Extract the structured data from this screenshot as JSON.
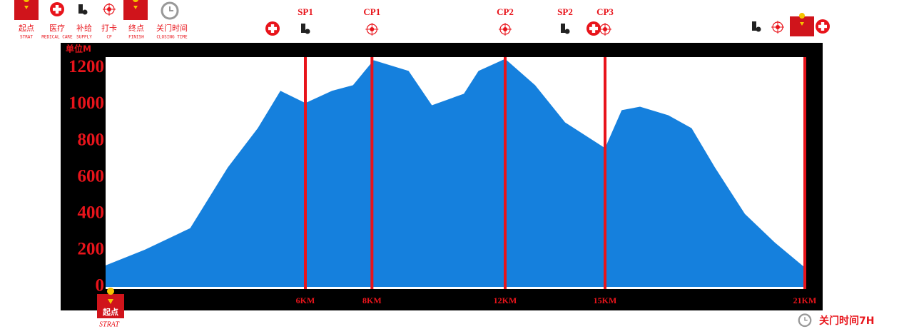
{
  "chart_data": {
    "type": "area",
    "legend": [
      {
        "name": "起点",
        "sub": "STRAT"
      },
      {
        "name": "医疗",
        "sub": "MEDICAL CARE"
      },
      {
        "name": "补给",
        "sub": "SUPPLY"
      },
      {
        "name": "打卡",
        "sub": "CP"
      },
      {
        "name": "终点",
        "sub": "FINISH"
      },
      {
        "name": "关门时间",
        "sub": "CLOSING TIME"
      }
    ],
    "y_label": "单位M",
    "x": [
      0,
      1.18,
      2.54,
      3.67,
      4.57,
      5.25,
      6,
      6.8,
      7.43,
      8.05,
      9.1,
      9.8,
      10.76,
      11.2,
      12,
      12.9,
      13.8,
      15,
      15.5,
      16.05,
      16.9,
      17.6,
      18.3,
      19.2,
      20.1,
      21
    ],
    "series": [
      {
        "color": "#1580dd",
        "values": [
          118,
          204,
          322,
          655,
          870,
          1075,
          1008,
          1075,
          1106,
          1243,
          1184,
          996,
          1059,
          1184,
          1250,
          1106,
          902,
          761,
          969,
          988,
          941,
          870,
          655,
          400,
          243,
          106
        ]
      }
    ],
    "checkpoints": [
      {
        "name": "SP1",
        "x": 6
      },
      {
        "name": "CP1",
        "x": 8
      },
      {
        "name": "CP2",
        "x": 12
      },
      {
        "name": "SP2",
        "x": 13.8
      },
      {
        "name": "CP3",
        "x": 15
      }
    ],
    "xlim": [
      0,
      21
    ],
    "xticks": [
      {
        "value": 6,
        "label": "6KM"
      },
      {
        "value": 8,
        "label": "8KM"
      },
      {
        "value": 12,
        "label": "12KM"
      },
      {
        "value": 15,
        "label": "15KM"
      },
      {
        "value": 21,
        "label": "21KM"
      }
    ],
    "ylim": [
      0,
      1260
    ],
    "yticks": [
      0,
      200,
      400,
      600,
      800,
      1000,
      1200
    ],
    "grid_color": "#e8141b",
    "start_badge": {
      "name": "起点",
      "sub": "STRAT"
    },
    "closing_time": "关门时间7H"
  }
}
